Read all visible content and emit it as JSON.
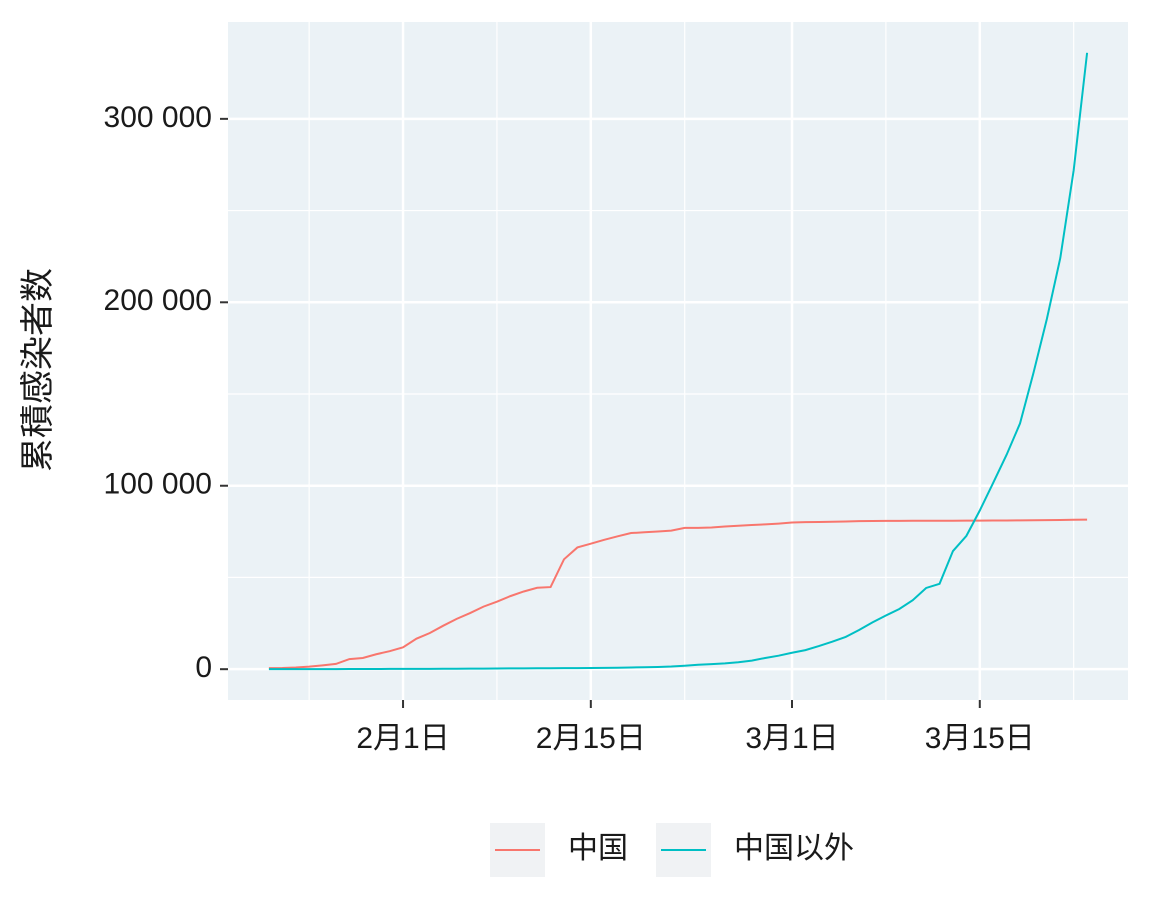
{
  "chart_data": {
    "type": "line",
    "y_label": "累積感染者数",
    "x": [
      "01-22",
      "01-23",
      "01-24",
      "01-25",
      "01-26",
      "01-27",
      "01-28",
      "01-29",
      "01-30",
      "01-31",
      "02-01",
      "02-02",
      "02-03",
      "02-04",
      "02-05",
      "02-06",
      "02-07",
      "02-08",
      "02-09",
      "02-10",
      "02-11",
      "02-12",
      "02-13",
      "02-14",
      "02-15",
      "02-16",
      "02-17",
      "02-18",
      "02-19",
      "02-20",
      "02-21",
      "02-22",
      "02-23",
      "02-24",
      "02-25",
      "02-26",
      "02-27",
      "02-28",
      "02-29",
      "03-01",
      "03-02",
      "03-03",
      "03-04",
      "03-05",
      "03-06",
      "03-07",
      "03-08",
      "03-09",
      "03-10",
      "03-11",
      "03-12",
      "03-13",
      "03-14",
      "03-15",
      "03-16",
      "03-17",
      "03-18",
      "03-19",
      "03-20",
      "03-21",
      "03-22",
      "03-23"
    ],
    "series": [
      {
        "name": "中国",
        "color": "#F8766D",
        "values": [
          548,
          643,
          920,
          1406,
          2075,
          2877,
          5509,
          6087,
          8141,
          9802,
          11891,
          16630,
          19716,
          23707,
          27440,
          30587,
          34110,
          36814,
          39829,
          42354,
          44386,
          44759,
          59895,
          66358,
          68413,
          70513,
          72434,
          74211,
          74619,
          75077,
          75550,
          77001,
          77022,
          77241,
          77754,
          78166,
          78600,
          78928,
          79356,
          79932,
          80136,
          80261,
          80386,
          80537,
          80690,
          80770,
          80823,
          80860,
          80887,
          80921,
          80932,
          80945,
          80977,
          81003,
          81033,
          81058,
          81102,
          81156,
          81250,
          81305,
          81435,
          81498
        ]
      },
      {
        "name": "中国以外",
        "color": "#00BFC4",
        "values": [
          7,
          11,
          21,
          28,
          43,
          50,
          71,
          78,
          94,
          139,
          150,
          175,
          197,
          218,
          251,
          272,
          335,
          361,
          440,
          467,
          503,
          531,
          556,
          583,
          616,
          692,
          807,
          951,
          1060,
          1178,
          1435,
          1897,
          2436,
          2748,
          3158,
          3768,
          4661,
          6110,
          7360,
          8961,
          10391,
          12602,
          14999,
          17584,
          21357,
          25500,
          29255,
          32805,
          37586,
          44269,
          46550,
          64397,
          72669,
          86490,
          101576,
          116900,
          133965,
          161436,
          190888,
          224087,
          272000,
          336000
        ]
      }
    ],
    "xlim": [
      "01-22",
      "03-23"
    ],
    "xticks": [
      {
        "value": "02-01",
        "label": "2月1日"
      },
      {
        "value": "02-15",
        "label": "2月15日"
      },
      {
        "value": "03-01",
        "label": "3月1日"
      },
      {
        "value": "03-15",
        "label": "3月15日"
      }
    ],
    "ylim": [
      -16800,
      352800
    ],
    "yticks": [
      0,
      {
        "value": 100000,
        "label": "100 000"
      },
      {
        "value": 200000,
        "label": "200 000"
      },
      {
        "value": 300000,
        "label": "300 000"
      }
    ],
    "grid": true,
    "legend": "bottom"
  }
}
